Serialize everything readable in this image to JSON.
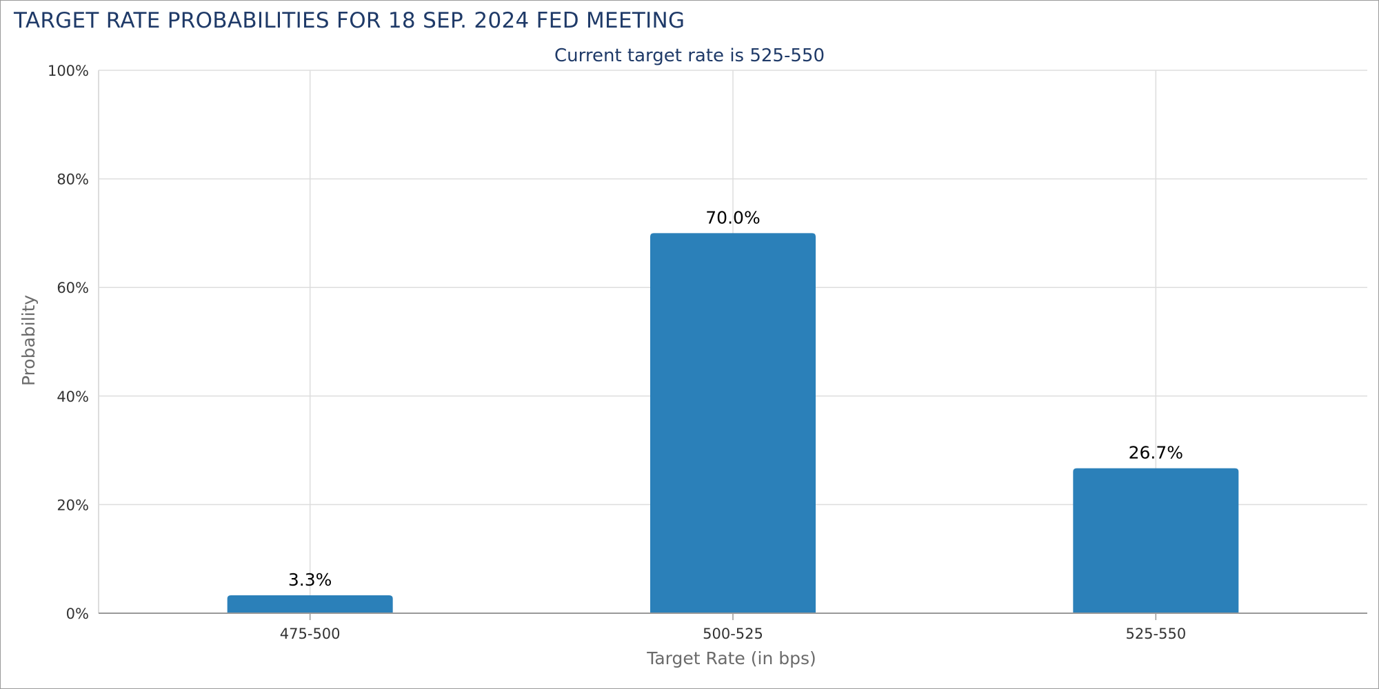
{
  "header": {
    "title": "TARGET RATE PROBABILITIES FOR 18 SEP. 2024 FED MEETING"
  },
  "colors": {
    "title": "#1f3a68",
    "bar": "#2b80b9",
    "grid": "#dddddd",
    "axis": "#999999"
  },
  "chart_data": {
    "type": "bar",
    "title": "TARGET RATE PROBABILITIES FOR 18 SEP. 2024 FED MEETING",
    "subtitle": "Current target rate is 525-550",
    "xlabel": "Target Rate (in bps)",
    "ylabel": "Probability",
    "categories": [
      "475-500",
      "500-525",
      "525-550"
    ],
    "values": [
      3.3,
      70.0,
      26.7
    ],
    "data_labels": [
      "3.3%",
      "70.0%",
      "26.7%"
    ],
    "ylim": [
      0,
      100
    ],
    "yticks": [
      0,
      20,
      40,
      60,
      80,
      100
    ],
    "ytick_labels": [
      "0%",
      "20%",
      "40%",
      "60%",
      "80%",
      "100%"
    ],
    "grid": true,
    "legend": "none"
  }
}
